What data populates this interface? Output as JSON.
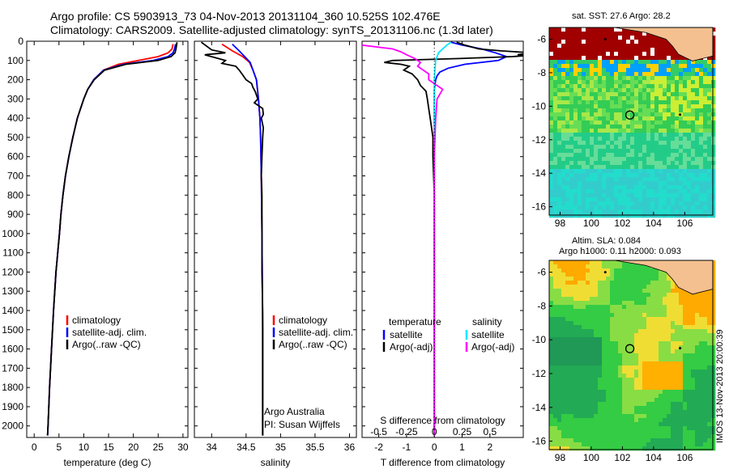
{
  "header": {
    "line1": "Argo profile: CS 5903913_73 04-Nov-2013 20131104_360 10.525S 102.476E",
    "line2": "Climatology: CARS2009. Satellite-adjusted climatology: synTS_20131106.nc (1.3d later)"
  },
  "side_label": "IMOS 13-Nov-2013 20:00:39",
  "colors": {
    "climatology": "#ff0000",
    "satellite": "#0000ff",
    "argo": "#000000",
    "salinity_satellite": "#00e5ff",
    "salinity_argo": "#ff00ff"
  },
  "chart_data": [
    {
      "type": "line",
      "id": "temperature",
      "xlabel": "temperature (deg C)",
      "xlim": [
        -1.5,
        31
      ],
      "xticks": [
        0,
        5,
        10,
        15,
        20,
        25,
        30
      ],
      "ylim": [
        0,
        2060
      ],
      "yticks": [
        0,
        100,
        200,
        300,
        400,
        500,
        600,
        700,
        800,
        900,
        1000,
        1100,
        1200,
        1300,
        1400,
        1500,
        1600,
        1700,
        1800,
        1900,
        2000
      ],
      "legend": [
        "climatology",
        "satellite-adj. clim.",
        "Argo(..raw -QC)"
      ],
      "series": [
        {
          "name": "climatology",
          "color": "#ff0000",
          "depth": [
            15,
            40,
            60,
            80,
            100,
            120,
            150,
            200,
            250,
            300,
            400,
            500,
            600,
            700,
            800,
            900,
            1000,
            1200,
            1400,
            1600,
            1800,
            2000,
            2050
          ],
          "values": [
            28,
            27.8,
            27,
            25,
            21,
            17,
            14,
            12,
            10.8,
            10,
            8.7,
            7.8,
            7,
            6.3,
            5.8,
            5.4,
            5.1,
            4.4,
            3.9,
            3.5,
            3.1,
            2.8,
            2.7
          ]
        },
        {
          "name": "satellite-adj. clim.",
          "color": "#0000ff",
          "depth": [
            15,
            40,
            60,
            80,
            100,
            120,
            150,
            200,
            250,
            300,
            400,
            500,
            600,
            700,
            800,
            900,
            1000,
            1200,
            1400,
            1600,
            1800,
            2000,
            2050
          ],
          "values": [
            28.5,
            28.3,
            28,
            27,
            24,
            18,
            14,
            12,
            10.8,
            10,
            8.7,
            7.8,
            7,
            6.3,
            5.8,
            5.4,
            5.1,
            4.4,
            3.9,
            3.5,
            3.1,
            2.8,
            2.7
          ]
        },
        {
          "name": "Argo(..raw -QC)",
          "color": "#000000",
          "depth": [
            5,
            40,
            60,
            80,
            100,
            120,
            150,
            200,
            250,
            300,
            400,
            500,
            600,
            700,
            800,
            900,
            1000,
            1200,
            1400,
            1600,
            1800,
            2000,
            2050
          ],
          "values": [
            28.8,
            28.6,
            28.4,
            27.6,
            25,
            18.5,
            14.2,
            12.1,
            10.8,
            10,
            8.7,
            7.8,
            7,
            6.3,
            5.8,
            5.4,
            5.1,
            4.4,
            3.9,
            3.5,
            3.1,
            2.8,
            2.7
          ]
        }
      ]
    },
    {
      "type": "line",
      "id": "salinity",
      "xlabel": "salinity",
      "xlim": [
        33.75,
        36.1
      ],
      "xticks": [
        34,
        34.5,
        35,
        35.5,
        36
      ],
      "ylim": [
        0,
        2060
      ],
      "legend": [
        "climatology",
        "satellite-adj. clim.",
        "Argo(..raw -QC)"
      ],
      "annotation": [
        "Argo Australia",
        "PI: Susan Wijffels"
      ],
      "series": [
        {
          "name": "climatology",
          "color": "#ff0000",
          "depth": [
            15,
            50,
            80,
            110,
            150,
            200,
            300,
            400,
            500,
            700,
            1000,
            1500,
            2050
          ],
          "values": [
            34.15,
            34.3,
            34.45,
            34.55,
            34.6,
            34.65,
            34.68,
            34.7,
            34.71,
            34.72,
            34.73,
            34.74,
            34.74
          ]
        },
        {
          "name": "satellite-adj. clim.",
          "color": "#0000ff",
          "depth": [
            15,
            50,
            80,
            110,
            150,
            200,
            300,
            400,
            500,
            700,
            1000,
            1500,
            2050
          ],
          "values": [
            34.3,
            34.4,
            34.48,
            34.56,
            34.6,
            34.65,
            34.68,
            34.7,
            34.71,
            34.72,
            34.73,
            34.74,
            34.74
          ]
        },
        {
          "name": "Argo(..raw -QC)",
          "color": "#000000",
          "depth": [
            5,
            45,
            60,
            70,
            85,
            100,
            115,
            130,
            150,
            175,
            200,
            220,
            240,
            260,
            280,
            300,
            320,
            350,
            380,
            400,
            450,
            500,
            600,
            700,
            800,
            1000,
            1200,
            1400,
            1600,
            1800,
            2000,
            2050
          ],
          "values": [
            33.85,
            34.0,
            34.2,
            33.9,
            34.05,
            34.2,
            34.15,
            34.35,
            34.4,
            34.45,
            34.5,
            34.58,
            34.6,
            34.63,
            34.65,
            34.67,
            34.62,
            34.74,
            34.75,
            34.72,
            34.75,
            34.74,
            34.73,
            34.72,
            34.73,
            34.73,
            34.73,
            34.74,
            34.74,
            34.74,
            34.74,
            34.74
          ]
        }
      ]
    },
    {
      "type": "line",
      "id": "difference",
      "xlabel": "T difference from climatology",
      "xlabel_top": "S difference from climatology",
      "xlim": [
        -2.6,
        3.2
      ],
      "xticks": [
        -2,
        -1,
        0,
        1,
        2
      ],
      "xticks_top": [
        {
          "label": "-0.5",
          "at": -2
        },
        {
          "label": "-0.25",
          "at": -1
        },
        {
          "label": "0",
          "at": 0
        },
        {
          "label": "0.25",
          "at": 1
        },
        {
          "label": "0.5",
          "at": 2
        }
      ],
      "ylim": [
        0,
        2060
      ],
      "legend_left": {
        "title": "temperature",
        "items": [
          "satellite",
          "Argo(-adj)"
        ]
      },
      "legend_right": {
        "title": "salinity",
        "items": [
          "satellite",
          "Argo(-adj)"
        ]
      },
      "series": [
        {
          "name": "T satellite",
          "color": "#0000ff",
          "depth": [
            5,
            20,
            40,
            60,
            80,
            100,
            120,
            140,
            160,
            180,
            200,
            250,
            300,
            400,
            600,
            1000,
            1500,
            2050
          ],
          "values": [
            0.6,
            1.0,
            1.7,
            2.2,
            2.6,
            2.3,
            1.1,
            0.5,
            0.2,
            0.1,
            0.05,
            0,
            0,
            0,
            0,
            0,
            0,
            0
          ]
        },
        {
          "name": "T Argo(-adj)",
          "color": "#000000",
          "depth": [
            5,
            20,
            40,
            50,
            60,
            70,
            75,
            80,
            90,
            100,
            110,
            120,
            130,
            150,
            170,
            200,
            230,
            260,
            300,
            350,
            400,
            450,
            500,
            600,
            800,
            1000,
            1500,
            2050
          ],
          "values": [
            0.8,
            1.1,
            1.6,
            2.4,
            3.5,
            3.0,
            3.3,
            2.8,
            0.9,
            -1.5,
            -1.8,
            -1.2,
            -0.9,
            -1.1,
            -0.8,
            -0.6,
            -0.5,
            -0.3,
            -0.25,
            -0.2,
            -0.15,
            -0.1,
            -0.05,
            -0.05,
            0,
            0,
            0,
            0
          ]
        },
        {
          "name": "S satellite",
          "color": "#00e5ff",
          "depth": [
            5,
            20,
            40,
            60,
            80,
            100,
            150,
            200,
            300,
            500,
            1000,
            2050
          ],
          "values": [
            0.6,
            0.45,
            0.3,
            0.15,
            0.1,
            0.05,
            0.02,
            0,
            0,
            0,
            0,
            0
          ]
        },
        {
          "name": "S Argo(-adj)",
          "color": "#ff00ff",
          "depth": [
            5,
            20,
            40,
            55,
            70,
            90,
            110,
            130,
            150,
            170,
            200,
            250,
            300,
            400,
            600,
            1000,
            1500,
            2050
          ],
          "values": [
            -2.8,
            -2.6,
            -1.5,
            -1.2,
            -1.0,
            -0.7,
            -0.5,
            -0.6,
            -0.4,
            -0.2,
            -0.2,
            0.3,
            0.1,
            0.05,
            0,
            0,
            0,
            0
          ]
        }
      ]
    },
    {
      "type": "heatmap",
      "id": "sst-map",
      "title": "sat. SST: 27.6  Argo: 28.2",
      "xlim": [
        97.3,
        107.8
      ],
      "ylim": [
        -16.5,
        -5.3
      ],
      "xticks": [
        98,
        100,
        102,
        104,
        106
      ],
      "yticks": [
        -6,
        -8,
        -10,
        -12,
        -14,
        -16
      ],
      "marker": {
        "lon": 102.476,
        "lat": -10.525
      }
    },
    {
      "type": "heatmap",
      "id": "sla-map",
      "title_line1": "Altim. SLA: 0.084",
      "title_line2": "Argo h1000: 0.11 h2000: 0.093",
      "xlim": [
        97.3,
        107.8
      ],
      "ylim": [
        -16.5,
        -5.3
      ],
      "xticks": [
        98,
        100,
        102,
        104,
        106
      ],
      "yticks": [
        -6,
        -8,
        -10,
        -12,
        -14,
        -16
      ],
      "marker": {
        "lon": 102.476,
        "lat": -10.525
      }
    }
  ]
}
